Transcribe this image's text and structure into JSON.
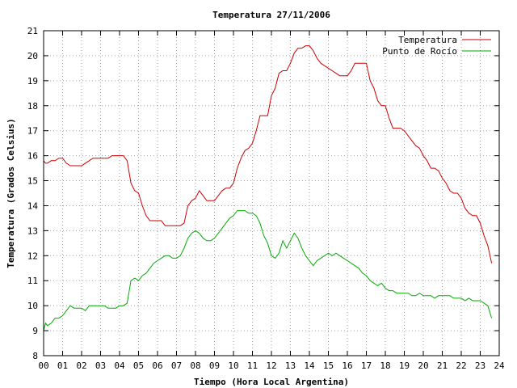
{
  "chart_data": {
    "type": "line",
    "title": "Temperatura 27/11/2006",
    "xlabel": "Tiempo (Hora Local Argentina)",
    "ylabel": "Temperatura (Grados Celsius)",
    "xlim": [
      0,
      24
    ],
    "ylim": [
      8,
      21
    ],
    "x_ticks": [
      0,
      1,
      2,
      3,
      4,
      5,
      6,
      7,
      8,
      9,
      10,
      11,
      12,
      13,
      14,
      15,
      16,
      17,
      18,
      19,
      20,
      21,
      22,
      23,
      24
    ],
    "x_tick_labels": [
      "00",
      "01",
      "02",
      "03",
      "04",
      "05",
      "06",
      "07",
      "08",
      "09",
      "10",
      "11",
      "12",
      "13",
      "14",
      "15",
      "16",
      "17",
      "18",
      "19",
      "20",
      "21",
      "22",
      "23",
      "24"
    ],
    "y_ticks": [
      8,
      9,
      10,
      11,
      12,
      13,
      14,
      15,
      16,
      17,
      18,
      19,
      20,
      21
    ],
    "y_tick_labels": [
      "8",
      "9",
      "10",
      "11",
      "12",
      "13",
      "14",
      "15",
      "16",
      "17",
      "18",
      "19",
      "20",
      "21"
    ],
    "grid": true,
    "legend_position": "top-right",
    "series": [
      {
        "name": "Temperatura",
        "color": "#cc0000",
        "x": [
          0.0,
          0.1,
          0.2,
          0.4,
          0.6,
          0.8,
          1.0,
          1.2,
          1.4,
          1.6,
          1.8,
          2.0,
          2.2,
          2.4,
          2.6,
          2.8,
          3.0,
          3.2,
          3.4,
          3.6,
          3.8,
          4.0,
          4.2,
          4.4,
          4.6,
          4.8,
          5.0,
          5.2,
          5.4,
          5.6,
          5.8,
          6.0,
          6.2,
          6.4,
          6.6,
          6.8,
          7.0,
          7.2,
          7.4,
          7.6,
          7.8,
          8.0,
          8.2,
          8.4,
          8.6,
          8.8,
          9.0,
          9.2,
          9.4,
          9.6,
          9.8,
          10.0,
          10.2,
          10.4,
          10.6,
          10.8,
          11.0,
          11.2,
          11.4,
          11.6,
          11.8,
          12.0,
          12.2,
          12.4,
          12.6,
          12.8,
          13.0,
          13.2,
          13.4,
          13.6,
          13.8,
          14.0,
          14.2,
          14.4,
          14.6,
          14.8,
          15.0,
          15.2,
          15.4,
          15.6,
          15.8,
          16.0,
          16.2,
          16.4,
          16.6,
          16.8,
          17.0,
          17.2,
          17.4,
          17.6,
          17.8,
          18.0,
          18.2,
          18.4,
          18.6,
          18.8,
          19.0,
          19.2,
          19.4,
          19.6,
          19.8,
          20.0,
          20.2,
          20.4,
          20.6,
          20.8,
          21.0,
          21.2,
          21.4,
          21.6,
          21.8,
          22.0,
          22.2,
          22.4,
          22.6,
          22.8,
          23.0,
          23.2,
          23.4,
          23.6
        ],
        "y": [
          15.8,
          15.7,
          15.7,
          15.8,
          15.8,
          15.9,
          15.9,
          15.7,
          15.6,
          15.6,
          15.6,
          15.6,
          15.7,
          15.8,
          15.9,
          15.9,
          15.9,
          15.9,
          15.9,
          16.0,
          16.0,
          16.0,
          16.0,
          15.8,
          14.9,
          14.6,
          14.5,
          14.0,
          13.6,
          13.4,
          13.4,
          13.4,
          13.4,
          13.2,
          13.2,
          13.2,
          13.2,
          13.2,
          13.3,
          14.0,
          14.2,
          14.3,
          14.6,
          14.4,
          14.2,
          14.2,
          14.2,
          14.4,
          14.6,
          14.7,
          14.7,
          14.9,
          15.5,
          15.9,
          16.2,
          16.3,
          16.5,
          17.0,
          17.6,
          17.6,
          17.6,
          18.4,
          18.7,
          19.3,
          19.4,
          19.4,
          19.7,
          20.1,
          20.3,
          20.3,
          20.4,
          20.4,
          20.2,
          19.9,
          19.7,
          19.6,
          19.5,
          19.4,
          19.3,
          19.2,
          19.2,
          19.2,
          19.4,
          19.7,
          19.7,
          19.7,
          19.7,
          19.0,
          18.7,
          18.2,
          18.0,
          18.0,
          17.5,
          17.1,
          17.1,
          17.1,
          17.0,
          16.8,
          16.6,
          16.4,
          16.3,
          16.0,
          15.8,
          15.5,
          15.5,
          15.4,
          15.1,
          14.9,
          14.6,
          14.5,
          14.5,
          14.3,
          13.9,
          13.7,
          13.6,
          13.6,
          13.3,
          12.8,
          12.4,
          11.7
        ]
      },
      {
        "name": "Punto de Rocío",
        "color": "#00aa00",
        "x": [
          0.0,
          0.1,
          0.2,
          0.4,
          0.6,
          0.8,
          1.0,
          1.2,
          1.4,
          1.6,
          1.8,
          2.0,
          2.2,
          2.4,
          2.6,
          2.8,
          3.0,
          3.2,
          3.4,
          3.6,
          3.8,
          4.0,
          4.2,
          4.4,
          4.6,
          4.8,
          5.0,
          5.2,
          5.4,
          5.6,
          5.8,
          6.0,
          6.2,
          6.4,
          6.6,
          6.8,
          7.0,
          7.2,
          7.4,
          7.6,
          7.8,
          8.0,
          8.2,
          8.4,
          8.6,
          8.8,
          9.0,
          9.2,
          9.4,
          9.6,
          9.8,
          10.0,
          10.2,
          10.4,
          10.6,
          10.8,
          11.0,
          11.2,
          11.4,
          11.6,
          11.8,
          12.0,
          12.2,
          12.4,
          12.6,
          12.8,
          13.0,
          13.2,
          13.4,
          13.6,
          13.8,
          14.0,
          14.2,
          14.4,
          14.6,
          14.8,
          15.0,
          15.2,
          15.4,
          15.6,
          15.8,
          16.0,
          16.2,
          16.4,
          16.6,
          16.8,
          17.0,
          17.2,
          17.4,
          17.6,
          17.8,
          18.0,
          18.2,
          18.4,
          18.6,
          18.8,
          19.0,
          19.2,
          19.4,
          19.6,
          19.8,
          20.0,
          20.2,
          20.4,
          20.6,
          20.8,
          21.0,
          21.2,
          21.4,
          21.6,
          21.8,
          22.0,
          22.2,
          22.4,
          22.6,
          22.8,
          23.0,
          23.2,
          23.4,
          23.6
        ],
        "y": [
          9.0,
          9.3,
          9.2,
          9.3,
          9.5,
          9.5,
          9.6,
          9.8,
          10.0,
          9.9,
          9.9,
          9.9,
          9.8,
          10.0,
          10.0,
          10.0,
          10.0,
          10.0,
          9.9,
          9.9,
          9.9,
          10.0,
          10.0,
          10.1,
          11.0,
          11.1,
          11.0,
          11.2,
          11.3,
          11.5,
          11.7,
          11.8,
          11.9,
          12.0,
          12.0,
          11.9,
          11.9,
          12.0,
          12.3,
          12.7,
          12.9,
          13.0,
          12.9,
          12.7,
          12.6,
          12.6,
          12.7,
          12.9,
          13.1,
          13.3,
          13.5,
          13.6,
          13.8,
          13.8,
          13.8,
          13.7,
          13.7,
          13.6,
          13.3,
          12.8,
          12.5,
          12.0,
          11.9,
          12.1,
          12.6,
          12.3,
          12.6,
          12.9,
          12.7,
          12.3,
          12.0,
          11.8,
          11.6,
          11.8,
          11.9,
          12.0,
          12.1,
          12.0,
          12.1,
          12.0,
          11.9,
          11.8,
          11.7,
          11.6,
          11.5,
          11.3,
          11.2,
          11.0,
          10.9,
          10.8,
          10.9,
          10.7,
          10.6,
          10.6,
          10.5,
          10.5,
          10.5,
          10.5,
          10.4,
          10.4,
          10.5,
          10.4,
          10.4,
          10.4,
          10.3,
          10.4,
          10.4,
          10.4,
          10.4,
          10.3,
          10.3,
          10.3,
          10.2,
          10.3,
          10.2,
          10.2,
          10.2,
          10.1,
          10.0,
          9.5
        ]
      }
    ]
  }
}
